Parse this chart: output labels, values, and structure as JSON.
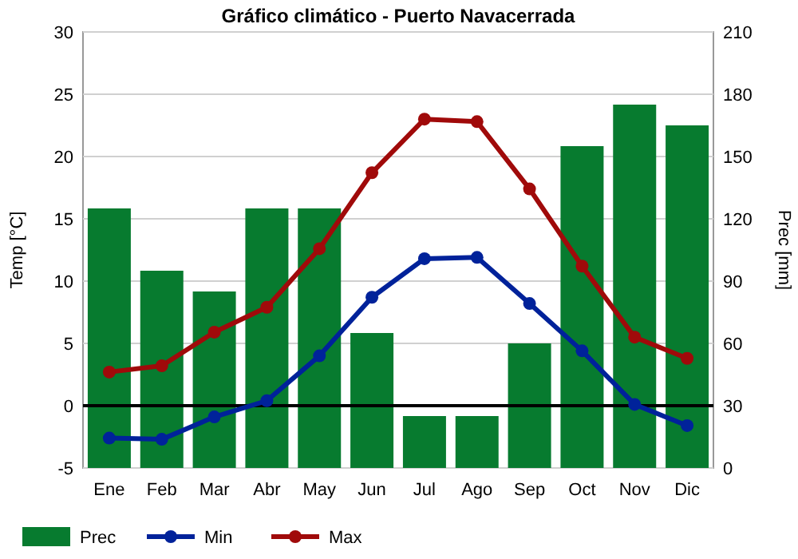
{
  "chart_data": {
    "type": "bar",
    "title": "Gráfico climático - Puerto Navacerrada",
    "ylabel": "Temp [°C]",
    "y2label": "Prec [mm]",
    "categories": [
      "Ene",
      "Feb",
      "Mar",
      "Abr",
      "May",
      "Jun",
      "Jul",
      "Ago",
      "Sep",
      "Oct",
      "Nov",
      "Dic"
    ],
    "series": [
      {
        "name": "Prec",
        "axis": "y2",
        "color": "#077b2f",
        "values": [
          125,
          95,
          85,
          125,
          125,
          65,
          25,
          25,
          60,
          155,
          175,
          165
        ]
      },
      {
        "name": "Min",
        "type": "line",
        "color": "#00229a",
        "values": [
          -2.6,
          -2.7,
          -0.9,
          0.4,
          4.0,
          8.7,
          11.8,
          11.9,
          8.2,
          4.4,
          0.1,
          -1.6
        ]
      },
      {
        "name": "Max",
        "type": "line",
        "color": "#a00a0a",
        "values": [
          2.7,
          3.2,
          5.9,
          7.9,
          12.6,
          18.7,
          23.0,
          22.8,
          17.4,
          11.2,
          5.5,
          3.8
        ]
      }
    ],
    "ylim": [
      -5,
      30
    ],
    "yticks": [
      -5,
      0,
      5,
      10,
      15,
      20,
      25,
      30
    ],
    "y2lim": [
      0,
      210
    ],
    "y2ticks": [
      0,
      30,
      60,
      90,
      120,
      150,
      180,
      210
    ],
    "ref_lines": [
      {
        "axis": "y",
        "value": 0,
        "color": "#000000"
      }
    ],
    "grid": "y",
    "legend": "bottom",
    "marker": "circle",
    "line_style": "solid"
  }
}
